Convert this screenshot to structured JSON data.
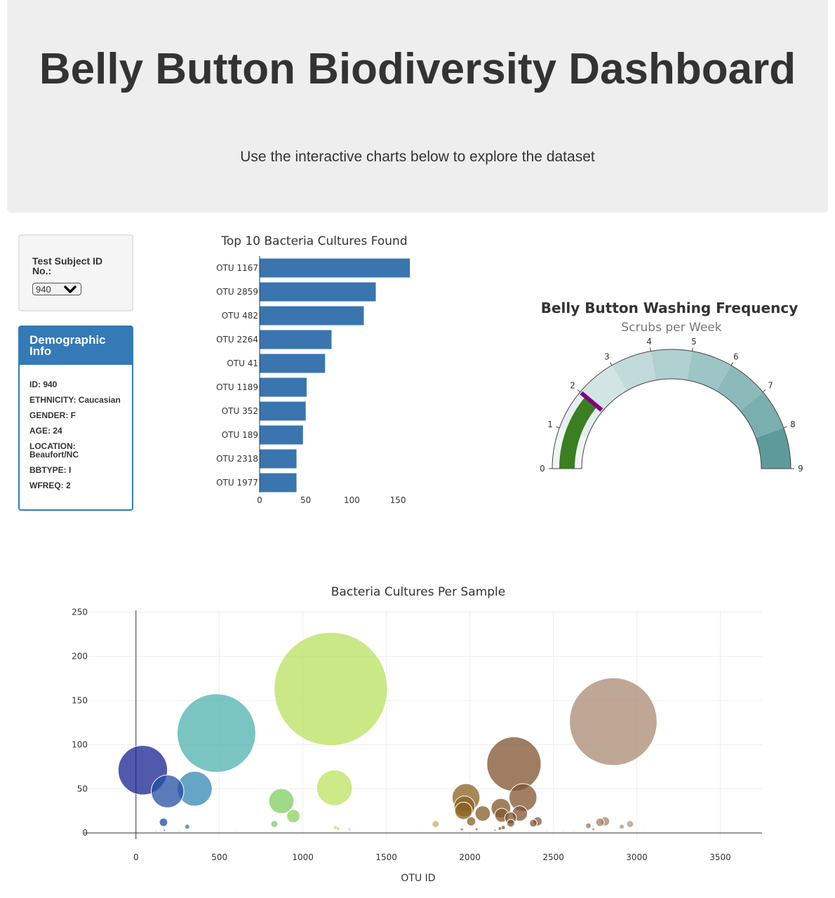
{
  "header": {
    "title": "Belly Button Biodiversity Dashboard",
    "subtitle": "Use the interactive charts below to explore the dataset"
  },
  "selector": {
    "label": "Test Subject ID No.:",
    "selected": "940"
  },
  "demographics": {
    "title": "Demographic Info",
    "rows": [
      "ID: 940",
      "ETHNICITY: Caucasian",
      "GENDER: F",
      "AGE: 24",
      "LOCATION: Beaufort/NC",
      "BBTYPE: I",
      "WFREQ: 2"
    ]
  },
  "colors": {
    "accent": "#337ab7",
    "bar": "#3a75b0",
    "gauge_fill": "#3a7f22",
    "gauge_threshold": "#800080"
  },
  "chart_data": [
    {
      "type": "bar",
      "orientation": "horizontal",
      "title": "Top 10 Bacteria Cultures Found",
      "categories": [
        "OTU 1167",
        "OTU 2859",
        "OTU 482",
        "OTU 2264",
        "OTU 41",
        "OTU 1189",
        "OTU 352",
        "OTU 189",
        "OTU 2318",
        "OTU 1977"
      ],
      "values": [
        163,
        126,
        113,
        78,
        71,
        51,
        50,
        47,
        40,
        40
      ],
      "xticks": [
        0,
        50,
        100,
        150
      ],
      "xlim": [
        0,
        172
      ]
    },
    {
      "type": "gauge",
      "title": "Belly Button Washing Frequency",
      "subtitle": "Scrubs per Week",
      "value": 2,
      "range": [
        0,
        9
      ],
      "ticks": [
        0,
        1,
        2,
        3,
        4,
        5,
        6,
        7,
        8,
        9
      ],
      "steps": [
        {
          "range": [
            0,
            1
          ],
          "color": "#f0f5f5"
        },
        {
          "range": [
            1,
            2
          ],
          "color": "#e5efef"
        },
        {
          "range": [
            2,
            3
          ],
          "color": "#d3e4e4"
        },
        {
          "range": [
            3,
            4
          ],
          "color": "#c2dada"
        },
        {
          "range": [
            4,
            5
          ],
          "color": "#b0cfcf"
        },
        {
          "range": [
            5,
            6
          ],
          "color": "#9ec5c5"
        },
        {
          "range": [
            6,
            7
          ],
          "color": "#8cbaba"
        },
        {
          "range": [
            7,
            8
          ],
          "color": "#7aafaf"
        },
        {
          "range": [
            8,
            9
          ],
          "color": "#5f9a9a"
        }
      ]
    },
    {
      "type": "scatter",
      "mode": "bubble",
      "title": "Bacteria Cultures Per Sample",
      "xlabel": "OTU ID",
      "ylabel": "",
      "xlim": [
        -310,
        3750
      ],
      "ylim": [
        -7,
        252
      ],
      "xticks": [
        0,
        500,
        1000,
        1500,
        2000,
        2500,
        3000,
        3500
      ],
      "yticks": [
        0,
        50,
        100,
        150,
        200,
        250
      ],
      "points": [
        {
          "x": 41,
          "y": 71,
          "size": 71
        },
        {
          "x": 189,
          "y": 47,
          "size": 47
        },
        {
          "x": 352,
          "y": 50,
          "size": 50
        },
        {
          "x": 482,
          "y": 113,
          "size": 113
        },
        {
          "x": 1167,
          "y": 163,
          "size": 163
        },
        {
          "x": 1189,
          "y": 51,
          "size": 51
        },
        {
          "x": 871,
          "y": 36,
          "size": 36
        },
        {
          "x": 943,
          "y": 19,
          "size": 19
        },
        {
          "x": 2264,
          "y": 78,
          "size": 78
        },
        {
          "x": 2859,
          "y": 126,
          "size": 126
        },
        {
          "x": 2318,
          "y": 40,
          "size": 40
        },
        {
          "x": 1977,
          "y": 40,
          "size": 40
        },
        {
          "x": 1968,
          "y": 30,
          "size": 30
        },
        {
          "x": 1962,
          "y": 25,
          "size": 25
        },
        {
          "x": 2077,
          "y": 22,
          "size": 22
        },
        {
          "x": 2186,
          "y": 28,
          "size": 28
        },
        {
          "x": 2191,
          "y": 20,
          "size": 20
        },
        {
          "x": 2299,
          "y": 22,
          "size": 22
        },
        {
          "x": 2244,
          "y": 17,
          "size": 17
        },
        {
          "x": 2008,
          "y": 13,
          "size": 13
        },
        {
          "x": 2406,
          "y": 13,
          "size": 13
        },
        {
          "x": 2380,
          "y": 11,
          "size": 11
        },
        {
          "x": 2245,
          "y": 11,
          "size": 11
        },
        {
          "x": 1795,
          "y": 10,
          "size": 10
        },
        {
          "x": 2780,
          "y": 12,
          "size": 12
        },
        {
          "x": 2810,
          "y": 13,
          "size": 13
        },
        {
          "x": 2960,
          "y": 10,
          "size": 10
        },
        {
          "x": 2710,
          "y": 8,
          "size": 8
        },
        {
          "x": 2910,
          "y": 7,
          "size": 7
        },
        {
          "x": 165,
          "y": 12,
          "size": 12
        },
        {
          "x": 307,
          "y": 7,
          "size": 7
        },
        {
          "x": 829,
          "y": 10,
          "size": 10
        },
        {
          "x": 1195,
          "y": 6,
          "size": 6
        },
        {
          "x": 1210,
          "y": 5,
          "size": 5
        },
        {
          "x": 1279,
          "y": 4,
          "size": 4
        },
        {
          "x": 1952,
          "y": 4,
          "size": 4
        },
        {
          "x": 2040,
          "y": 4,
          "size": 4
        },
        {
          "x": 2180,
          "y": 5,
          "size": 5
        },
        {
          "x": 2200,
          "y": 6,
          "size": 6
        },
        {
          "x": 2740,
          "y": 4,
          "size": 4
        },
        {
          "x": 2150,
          "y": 3,
          "size": 3
        },
        {
          "x": 120,
          "y": 2,
          "size": 2
        },
        {
          "x": 170,
          "y": 3,
          "size": 3
        },
        {
          "x": 260,
          "y": 2,
          "size": 2
        },
        {
          "x": 600,
          "y": 2,
          "size": 2
        },
        {
          "x": 940,
          "y": 2,
          "size": 2
        },
        {
          "x": 1320,
          "y": 2,
          "size": 2
        },
        {
          "x": 1700,
          "y": 2,
          "size": 2
        },
        {
          "x": 2460,
          "y": 2,
          "size": 2
        },
        {
          "x": 2560,
          "y": 2,
          "size": 2
        },
        {
          "x": 2620,
          "y": 2,
          "size": 2
        },
        {
          "x": 3040,
          "y": 2,
          "size": 2
        }
      ]
    }
  ]
}
